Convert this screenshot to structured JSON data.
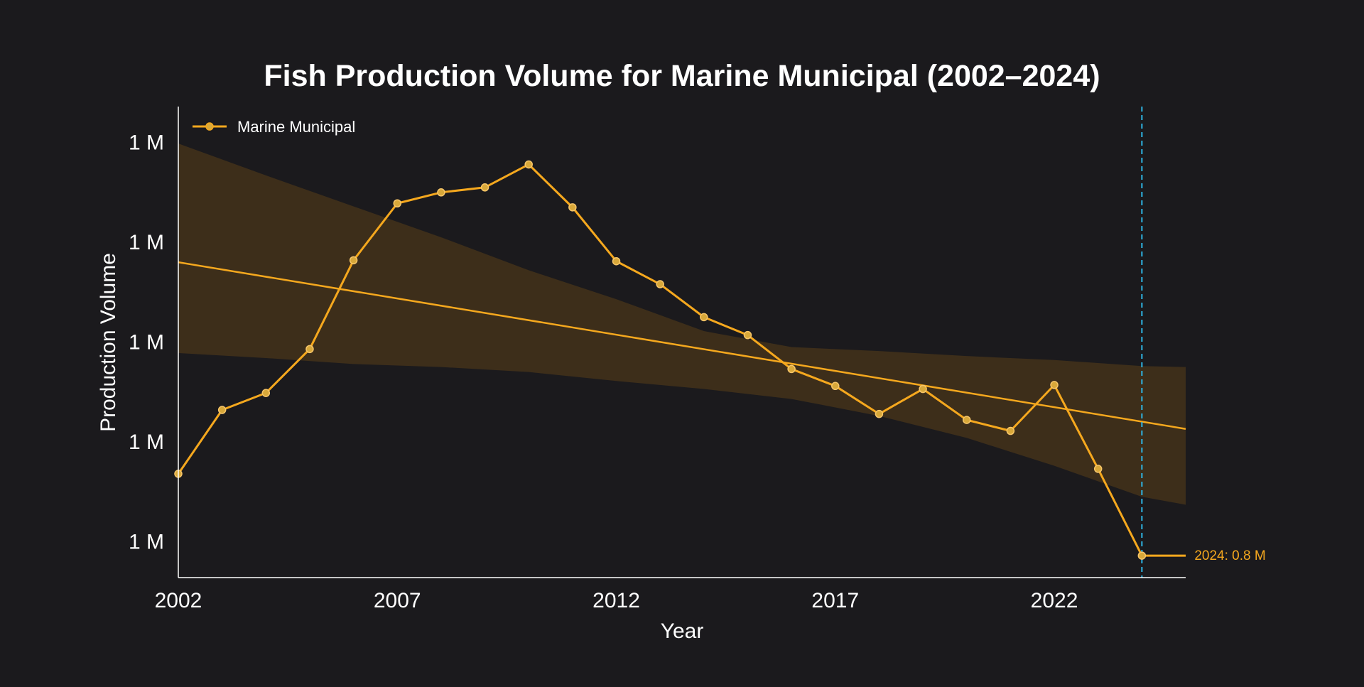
{
  "colors": {
    "background": "#1b1a1d",
    "series": "#f5a81e",
    "band": "#3d2e1a",
    "marker_reference": "#2eb6e6",
    "axis": "#ffffff",
    "text": "#ffffff"
  },
  "chart_data": {
    "type": "line",
    "title": "Fish Production Volume for Marine Municipal (2002–2024)",
    "xlabel": "Year",
    "ylabel": "Production Volume",
    "xlim": [
      2002,
      2025
    ],
    "ylim": [
      0.764,
      1.236
    ],
    "x_ticks": [
      2002,
      2007,
      2012,
      2017,
      2022
    ],
    "y_ticks": [
      {
        "value": 0.8,
        "label": "1 M"
      },
      {
        "value": 0.9,
        "label": "1 M"
      },
      {
        "value": 1.0,
        "label": "1 M"
      },
      {
        "value": 1.1,
        "label": "1 M"
      },
      {
        "value": 1.2,
        "label": "1 M"
      }
    ],
    "grid": false,
    "legend": {
      "position": "top-left",
      "label": "Marine Municipal"
    },
    "series": [
      {
        "name": "Marine Municipal",
        "x": [
          2002,
          2003,
          2004,
          2005,
          2006,
          2007,
          2008,
          2009,
          2010,
          2011,
          2012,
          2013,
          2014,
          2015,
          2016,
          2017,
          2018,
          2019,
          2020,
          2021,
          2022,
          2023,
          2024,
          2025
        ],
        "values": [
          0.868,
          0.932,
          0.949,
          0.993,
          1.082,
          1.139,
          1.15,
          1.155,
          1.178,
          1.135,
          1.081,
          1.058,
          1.025,
          1.007,
          0.973,
          0.956,
          0.928,
          0.953,
          0.922,
          0.911,
          0.957,
          0.873,
          0.786,
          0.786
        ]
      }
    ],
    "trend": {
      "x": [
        2002,
        2025
      ],
      "y": [
        1.08,
        0.913
      ]
    },
    "confidence_band": {
      "x": [
        2002,
        2004,
        2006,
        2008,
        2010,
        2012,
        2014,
        2016,
        2018,
        2020,
        2022,
        2024,
        2025
      ],
      "upper": [
        1.199,
        1.167,
        1.136,
        1.105,
        1.072,
        1.043,
        1.011,
        0.995,
        0.991,
        0.986,
        0.982,
        0.976,
        0.975
      ],
      "lower": [
        0.989,
        0.984,
        0.978,
        0.975,
        0.97,
        0.961,
        0.953,
        0.943,
        0.926,
        0.904,
        0.876,
        0.845,
        0.837
      ]
    },
    "reference_line": {
      "x": 2024,
      "style": "dashed"
    },
    "annotations": [
      {
        "x": 2024,
        "y": 0.786,
        "text": "2024: 0.8 M"
      }
    ]
  }
}
